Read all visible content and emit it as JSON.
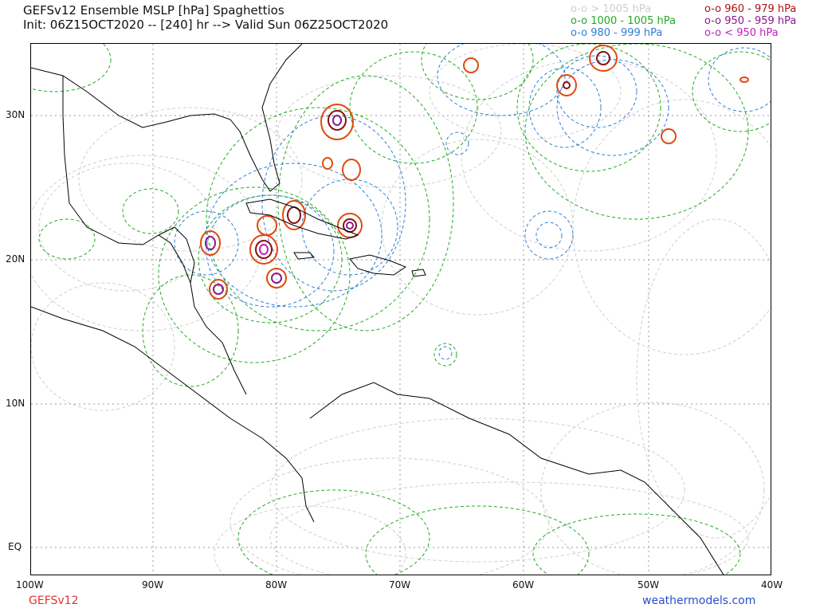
{
  "header": {
    "title": "GEFSv12 Ensemble MSLP [hPa] Spaghettios",
    "subtitle": "Init: 06Z15OCT2020 -- [240] hr --> Valid Sun 06Z25OCT2020"
  },
  "legend": {
    "items_left": [
      {
        "label": "o-o > 1005 hPa",
        "color": "#cfcfcf"
      },
      {
        "label": "o-o 1000 - 1005 hPa",
        "color": "#22aa22"
      },
      {
        "label": "o-o 980 - 999 hPa",
        "color": "#2f7fd6"
      }
    ],
    "items_right": [
      {
        "label": "o-o 960 - 979 hPa",
        "color": "#b01010"
      },
      {
        "label": "o-o 950 - 959 hPa",
        "color": "#8c1a8c"
      },
      {
        "label": "o-o < 950 hPa",
        "color": "#c020c0"
      }
    ]
  },
  "axes": {
    "lat_labels": [
      "30N",
      "20N",
      "10N",
      "EQ"
    ],
    "lon_labels": [
      "100W",
      "90W",
      "80W",
      "70W",
      "60W",
      "50W",
      "40W"
    ]
  },
  "footer": {
    "model": "GEFSv12",
    "model_color": "#e0332c",
    "site": "weathermodels.com",
    "site_color": "#2b4fc9"
  },
  "colors": {
    "coast": "#000000",
    "grid": "#9a9a9a",
    "red": "#e04a10",
    "darkred": "#8a0f0f",
    "purple": "#8c1a8c",
    "magenta": "#c020c0",
    "blue": "#2f7fd6",
    "green": "#22aa22",
    "gray": "#cfcfcf"
  }
}
